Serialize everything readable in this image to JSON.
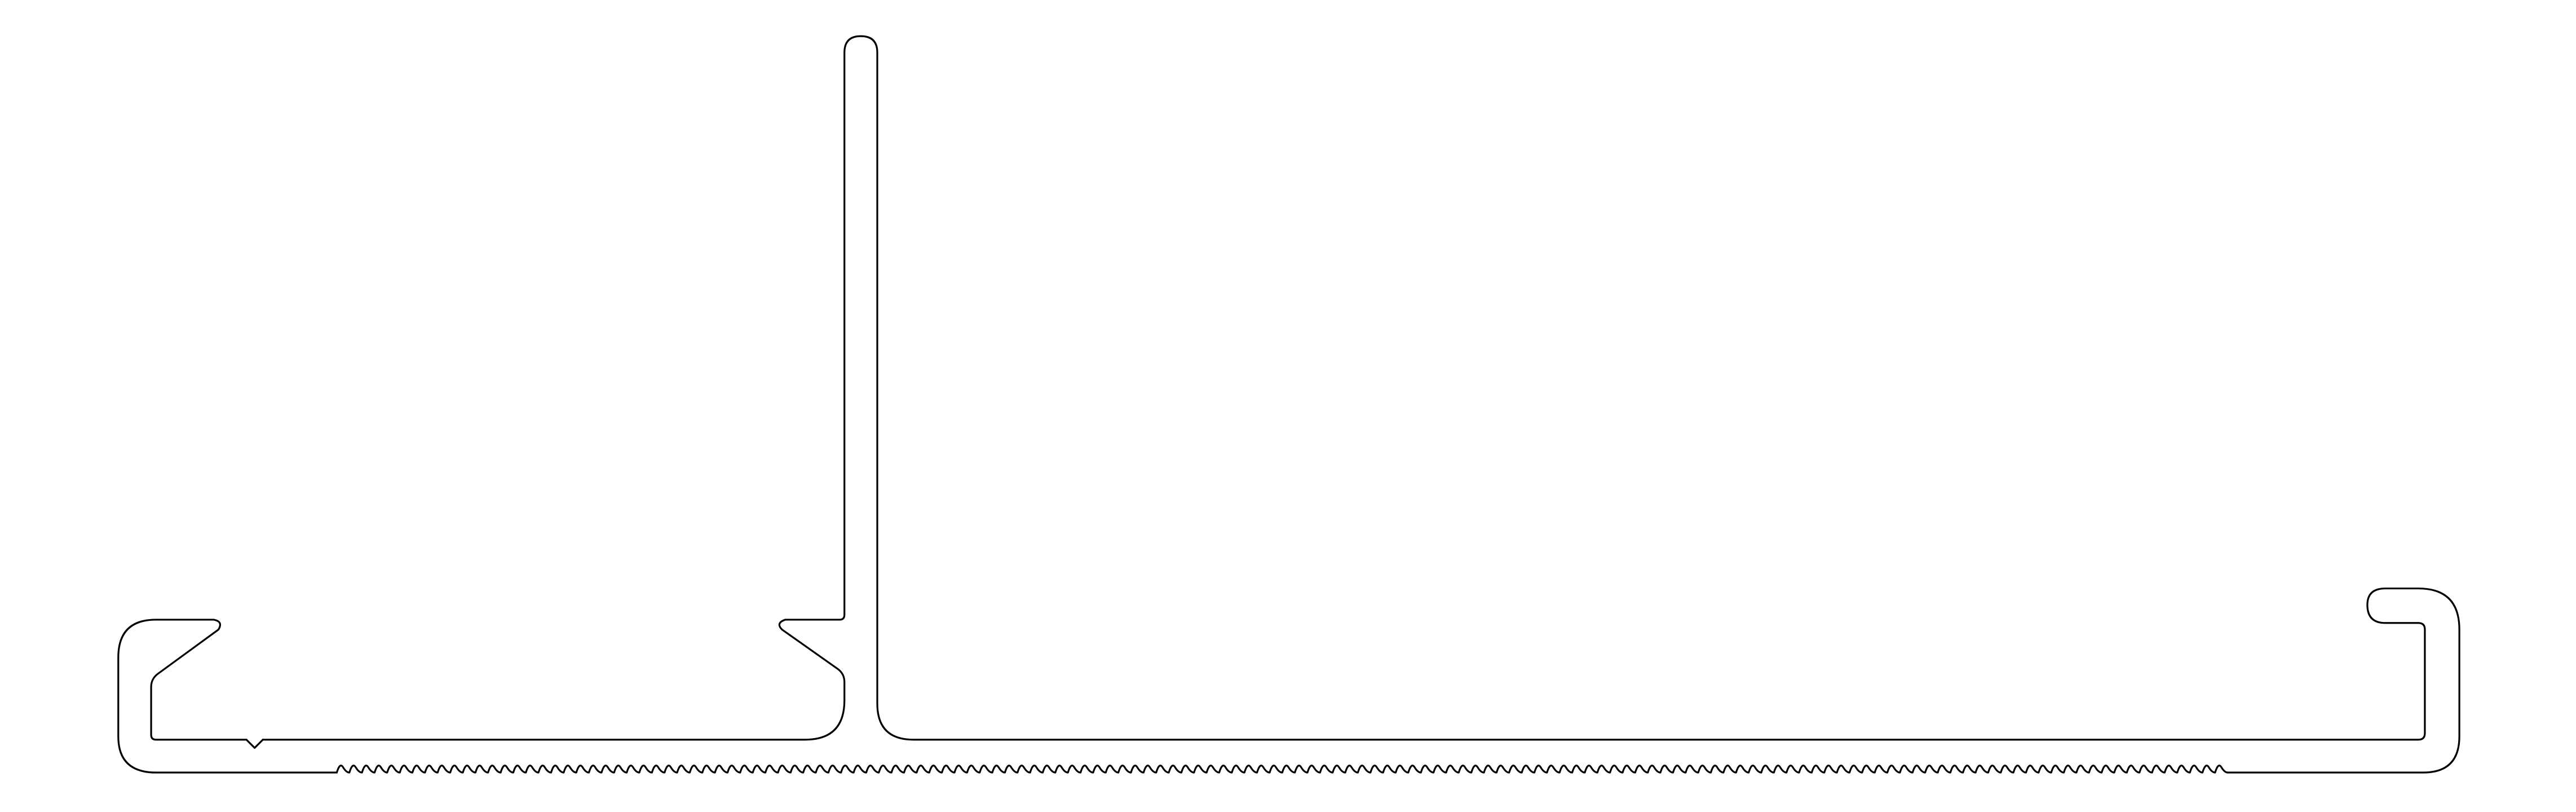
{
  "drawing": {
    "kind": "extrusion-profile-section",
    "background_color": "#ffffff",
    "stroke_color": "#000000",
    "text_labels": []
  }
}
